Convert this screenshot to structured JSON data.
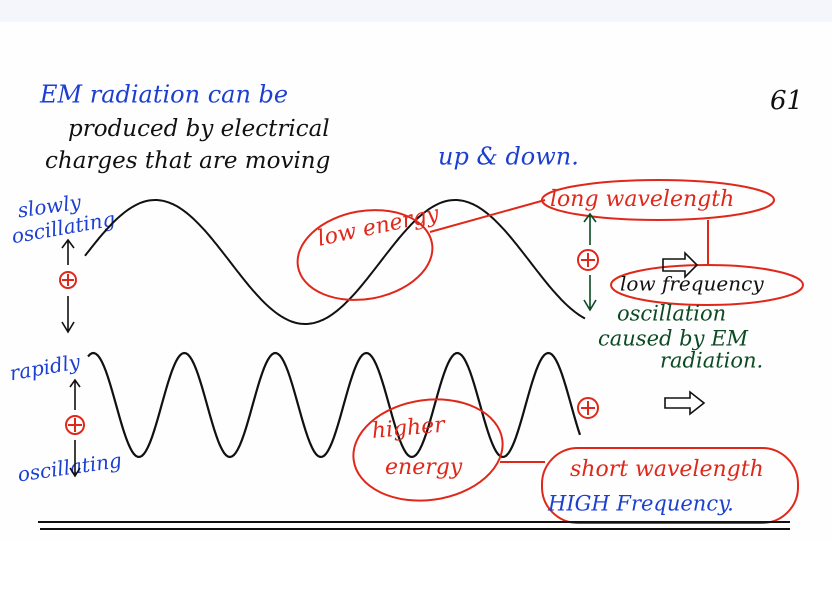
{
  "intro": {
    "line1": "EM radiation can be",
    "line2": "produced by electrical",
    "line3_black": "charges that are moving",
    "line3_blue": "up & down."
  },
  "page_number": "61",
  "left_labels": {
    "slowly": "slowly",
    "oscillating_top": "oscillating",
    "rapidly": "rapidly",
    "oscillating_bottom": "oscillating"
  },
  "top_wave": {
    "energy": "low energy",
    "wavelength": "long wavelength",
    "frequency": "low frequency",
    "note_line1": "oscillation",
    "note_line2": "caused by EM",
    "note_line3": "radiation."
  },
  "bottom_wave": {
    "energy_line1": "higher",
    "energy_line2": "energy",
    "wavelength": "short wavelength",
    "frequency": "HIGH Frequency."
  }
}
